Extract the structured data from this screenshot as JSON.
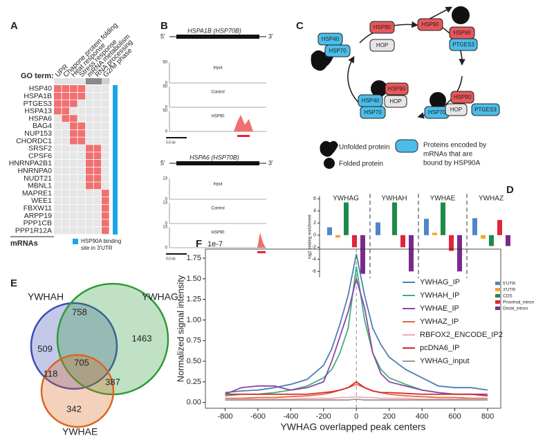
{
  "panels": {
    "a": "A",
    "b": "B",
    "c": "C",
    "d": "D",
    "e": "E",
    "f": "F"
  },
  "heatmap": {
    "go_label": "GO term:",
    "columns": [
      "UPR",
      "Chapone protein folding",
      "Heat response",
      "Stress response",
      "mRNA metabolism",
      "RNA processing",
      "G2/M phase"
    ],
    "rows": [
      "HSP40",
      "HSPA1B",
      "PTGES3",
      "HSPA13",
      "HSPA6",
      "BAG4",
      "NUP153",
      "CHORDC1",
      "SRSF2",
      "CPSF6",
      "HNRNPA2B1",
      "HNRNPA0",
      "NUDT21",
      "MBNL1",
      "MAPRE1",
      "WEE1",
      "FBXW11",
      "ARPP19",
      "PPP1CB",
      "PPP1R12A"
    ],
    "matrix": [
      [
        1,
        1,
        1,
        1,
        0,
        0,
        0
      ],
      [
        1,
        1,
        1,
        1,
        0,
        0,
        0
      ],
      [
        1,
        1,
        1,
        0,
        0,
        0,
        0
      ],
      [
        1,
        1,
        0,
        0,
        0,
        0,
        0
      ],
      [
        0,
        1,
        1,
        0,
        0,
        0,
        0
      ],
      [
        0,
        0,
        1,
        1,
        0,
        0,
        0
      ],
      [
        0,
        0,
        1,
        1,
        0,
        0,
        0
      ],
      [
        0,
        0,
        1,
        1,
        0,
        0,
        0
      ],
      [
        0,
        0,
        0,
        0,
        1,
        1,
        0
      ],
      [
        0,
        0,
        0,
        0,
        1,
        1,
        0
      ],
      [
        0,
        0,
        0,
        0,
        1,
        1,
        0
      ],
      [
        0,
        0,
        0,
        0,
        1,
        1,
        0
      ],
      [
        0,
        0,
        0,
        0,
        1,
        1,
        0
      ],
      [
        0,
        0,
        0,
        0,
        1,
        1,
        0
      ],
      [
        0,
        0,
        0,
        0,
        0,
        0,
        1
      ],
      [
        0,
        0,
        0,
        0,
        0,
        0,
        1
      ],
      [
        0,
        0,
        0,
        0,
        0,
        0,
        1
      ],
      [
        0,
        0,
        0,
        0,
        0,
        0,
        1
      ],
      [
        0,
        0,
        0,
        0,
        0,
        0,
        1
      ],
      [
        0,
        0,
        0,
        0,
        0,
        0,
        1
      ]
    ],
    "on_color": "#f07070",
    "off_color": "#e6e6e6",
    "binding_color": "#1aa7e8",
    "row_axis_label": "mRNAs",
    "legend": [
      "HSP90A binding",
      "site in 3'UTR"
    ]
  },
  "tracks": [
    {
      "gene": "HSPA1B (HSP70B)",
      "five": "5'",
      "three": "3'",
      "scale": "0,5 kb",
      "lanes": [
        {
          "name": "Input",
          "top": "50",
          "bottom": "0"
        },
        {
          "name": "Control",
          "top": "50",
          "bottom": "0"
        },
        {
          "name": "HSP90",
          "top": "50",
          "bottom": "0"
        }
      ]
    },
    {
      "gene": "HSPA6 (HSP70B)",
      "five": "5'",
      "three": "3'",
      "scale": "0,5 kb",
      "lanes": [
        {
          "name": "Input",
          "top": "13",
          "bottom": "0"
        },
        {
          "name": "Control",
          "top": "13",
          "bottom": "0"
        },
        {
          "name": "HSP90",
          "top": "13",
          "bottom": "0"
        }
      ]
    }
  ],
  "diagram": {
    "nodes": [
      {
        "label": "HSP90",
        "color": "#e8575a"
      },
      {
        "label": "HOP",
        "color": "#e6e6e6"
      },
      {
        "label": "HSP90",
        "color": "#e8575a"
      },
      {
        "label": "HSP90",
        "color": "#e8575a"
      },
      {
        "label": "PTGES3",
        "color": "#4bbde8"
      },
      {
        "label": "HSP40",
        "color": "#4bbde8"
      },
      {
        "label": "HSP70",
        "color": "#4bbde8"
      },
      {
        "label": "HSP90",
        "color": "#e8575a"
      },
      {
        "label": "HSP40",
        "color": "#4bbde8"
      },
      {
        "label": "HOP",
        "color": "#e6e6e6"
      },
      {
        "label": "HSP70",
        "color": "#4bbde8"
      },
      {
        "label": "HSP90",
        "color": "#e8575a"
      },
      {
        "label": "HSP70",
        "color": "#4bbde8"
      },
      {
        "label": "HOP",
        "color": "#e6e6e6"
      },
      {
        "label": "PTGES3",
        "color": "#4bbde8"
      }
    ],
    "legend_unfolded": "Unfolded protein",
    "legend_folded": "Folded protein",
    "legend_bound": [
      "Proteins encoded by",
      "mRNAs that are",
      "bound by HSP90A"
    ]
  },
  "venn": {
    "sets": [
      "YWHAH",
      "YWHAG",
      "YWHAE"
    ],
    "colors": [
      "#3b4bb5",
      "#2e9a3a",
      "#d9661f"
    ],
    "regions": [
      "509",
      "758",
      "1463",
      "705",
      "118",
      "387",
      "342"
    ]
  },
  "chart_data": [
    {
      "type": "bar",
      "ylabel": "log2 binding enrichment",
      "categories": [
        "YWHAG",
        "YWHAH",
        "YWHAE",
        "YWHAZ"
      ],
      "series": [
        {
          "name": "5'UTR",
          "color": "#4f86c6",
          "values": [
            1.3,
            2.1,
            2.7,
            2.8
          ]
        },
        {
          "name": "3'UTR",
          "color": "#f5a623",
          "values": [
            -0.4,
            null,
            0.4,
            -0.6
          ]
        },
        {
          "name": "CDS",
          "color": "#1e8a4a",
          "values": [
            5.4,
            5.4,
            5.4,
            -1.8
          ]
        },
        {
          "name": "Proximal_intron",
          "color": "#e0253a",
          "values": [
            -2.0,
            -2.0,
            -2.6,
            2.5
          ]
        },
        {
          "name": "Distal_intron",
          "color": "#7b2a8c",
          "values": [
            -6.4,
            -6.0,
            -6.0,
            -1.8
          ]
        }
      ],
      "ylim": [
        -7,
        6.5
      ],
      "yticks": [
        6,
        4,
        2,
        0,
        -2,
        -4,
        -6
      ]
    },
    {
      "type": "line",
      "offset_label": "1e-7",
      "ylabel": "Normalized signal intensity",
      "xlabel": "YWHAG overlapped peak centers",
      "x": [
        -800,
        -700,
        -600,
        -500,
        -400,
        -300,
        -200,
        -150,
        -100,
        -50,
        0,
        50,
        100,
        150,
        200,
        300,
        400,
        500,
        600,
        700,
        800
      ],
      "series": [
        {
          "name": "YWHAG_IP",
          "color": "#4a7fb5",
          "values": [
            0.12,
            0.14,
            0.15,
            0.18,
            0.22,
            0.28,
            0.45,
            0.65,
            0.95,
            1.3,
            1.8,
            1.3,
            0.9,
            0.7,
            0.55,
            0.4,
            0.3,
            0.2,
            0.18,
            0.18,
            0.15
          ]
        },
        {
          "name": "YWHAH_IP",
          "color": "#3cb371",
          "values": [
            0.08,
            0.1,
            0.1,
            0.12,
            0.15,
            0.2,
            0.3,
            0.4,
            0.6,
            0.9,
            1.65,
            1.0,
            0.6,
            0.4,
            0.3,
            0.22,
            0.15,
            0.12,
            0.1,
            0.1,
            0.08
          ]
        },
        {
          "name": "YWHAE_IP",
          "color": "#8e44ad",
          "values": [
            0.1,
            0.18,
            0.2,
            0.2,
            0.15,
            0.18,
            0.25,
            0.5,
            0.8,
            1.1,
            1.5,
            1.15,
            0.6,
            0.35,
            0.25,
            0.2,
            0.15,
            0.12,
            0.1,
            0.1,
            0.08
          ]
        },
        {
          "name": "YWHAZ_IP",
          "color": "#e8663d",
          "values": [
            0.05,
            0.05,
            0.06,
            0.06,
            0.07,
            0.08,
            0.1,
            0.12,
            0.15,
            0.18,
            0.22,
            0.18,
            0.14,
            0.12,
            0.1,
            0.08,
            0.07,
            0.06,
            0.06,
            0.05,
            0.05
          ]
        },
        {
          "name": "RBFOX2_ENCODE_IP2",
          "color": "#f4a8b8",
          "values": [
            0.04,
            0.04,
            0.04,
            0.04,
            0.04,
            0.05,
            0.05,
            0.05,
            0.06,
            0.06,
            0.07,
            0.06,
            0.06,
            0.05,
            0.05,
            0.05,
            0.04,
            0.04,
            0.04,
            0.04,
            0.04
          ]
        },
        {
          "name": "pcDNA6_IP",
          "color": "#d62728",
          "values": [
            0.1,
            0.1,
            0.1,
            0.1,
            0.1,
            0.1,
            0.12,
            0.13,
            0.15,
            0.18,
            0.25,
            0.18,
            0.14,
            0.12,
            0.12,
            0.11,
            0.1,
            0.1,
            0.1,
            0.1,
            0.1
          ]
        },
        {
          "name": "YWHAG_input",
          "color": "#999999",
          "values": [
            0.03,
            0.03,
            0.03,
            0.03,
            0.03,
            0.03,
            0.03,
            0.03,
            0.03,
            0.03,
            0.04,
            0.03,
            0.03,
            0.03,
            0.03,
            0.03,
            0.03,
            0.03,
            0.03,
            0.03,
            0.03
          ]
        }
      ],
      "xlim": [
        -920,
        880
      ],
      "ylim": [
        -0.07,
        1.86
      ],
      "xticks": [
        -800,
        -600,
        -400,
        -200,
        0,
        200,
        400,
        600,
        800
      ],
      "yticks": [
        {
          "value": 0,
          "label": "0.00"
        },
        {
          "value": 0.25,
          "label": "0.25"
        },
        {
          "value": 0.5,
          "label": "0.50"
        },
        {
          "value": 0.75,
          "label": "0.75"
        },
        {
          "value": 1,
          "label": "1.00"
        },
        {
          "value": 1.25,
          "label": "1.25"
        },
        {
          "value": 1.5,
          "label": "1.50"
        },
        {
          "value": 1.75,
          "label": "1.75"
        }
      ]
    }
  ]
}
